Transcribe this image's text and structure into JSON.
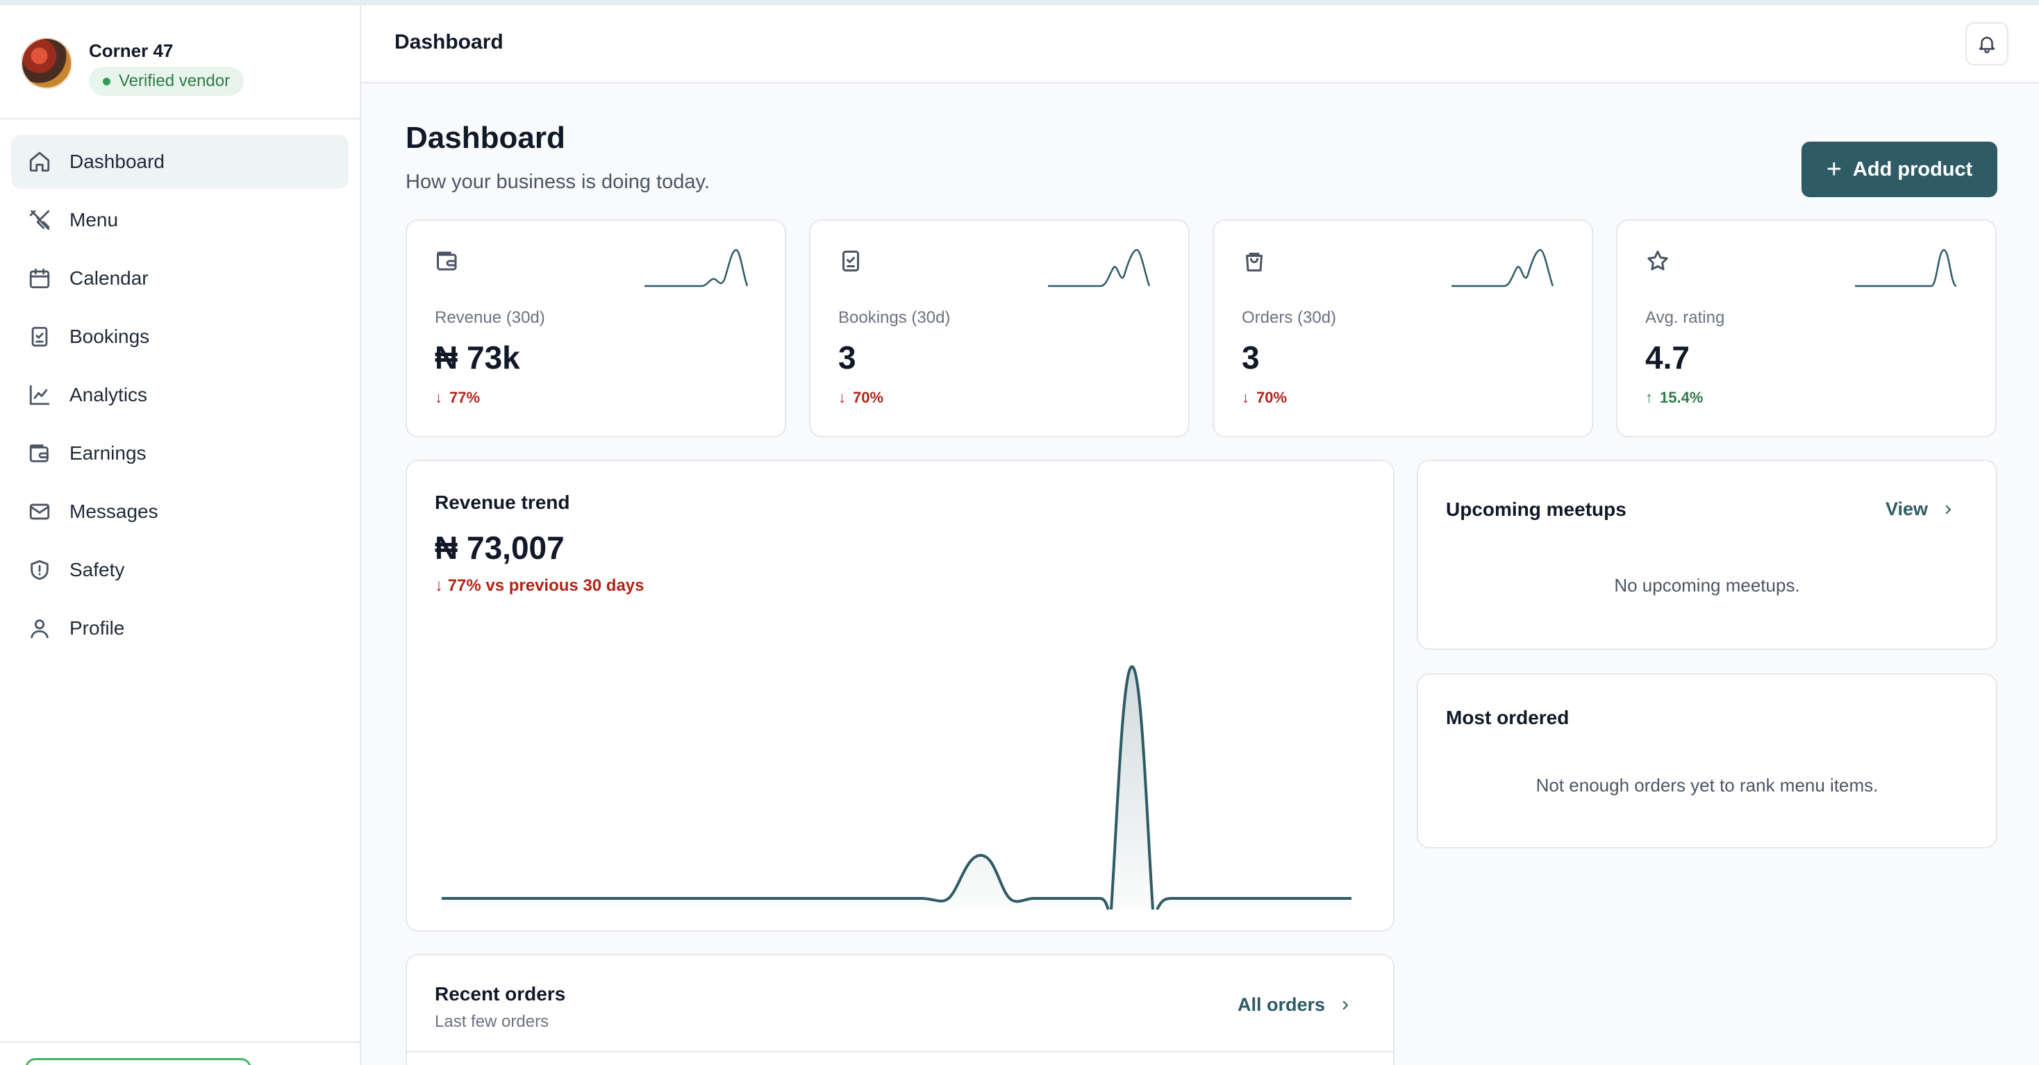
{
  "vendor": {
    "name": "Corner 47",
    "badge": "Verified vendor"
  },
  "nav": [
    {
      "label": "Dashboard",
      "icon": "home-icon",
      "active": true
    },
    {
      "label": "Menu",
      "icon": "utensils-icon"
    },
    {
      "label": "Calendar",
      "icon": "calendar-icon"
    },
    {
      "label": "Bookings",
      "icon": "clipboard-check-icon"
    },
    {
      "label": "Analytics",
      "icon": "line-chart-icon"
    },
    {
      "label": "Earnings",
      "icon": "wallet-icon"
    },
    {
      "label": "Messages",
      "icon": "mail-icon"
    },
    {
      "label": "Safety",
      "icon": "shield-alert-icon"
    },
    {
      "label": "Profile",
      "icon": "user-icon"
    }
  ],
  "topbar": {
    "title": "Dashboard",
    "bell_icon": "bell-icon"
  },
  "header": {
    "title": "Dashboard",
    "subtitle": "How your business is doing today.",
    "add_label": "Add product"
  },
  "stats": [
    {
      "label": "Revenue (30d)",
      "value": "₦ 73k",
      "delta": "77%",
      "direction": "down",
      "icon": "wallet-icon"
    },
    {
      "label": "Bookings (30d)",
      "value": "3",
      "delta": "70%",
      "direction": "down",
      "icon": "clipboard-check-icon"
    },
    {
      "label": "Orders (30d)",
      "value": "3",
      "delta": "70%",
      "direction": "down",
      "icon": "shopping-bag-icon"
    },
    {
      "label": "Avg. rating",
      "value": "4.7",
      "delta": "15.4%",
      "direction": "up",
      "icon": "star-icon"
    }
  ],
  "trend": {
    "title": "Revenue trend",
    "value": "₦ 73,007",
    "delta": "77% vs previous 30 days",
    "direction": "down"
  },
  "meetups": {
    "title": "Upcoming meetups",
    "link": "View",
    "empty": "No upcoming meetups."
  },
  "most_ordered": {
    "title": "Most ordered",
    "empty": "Not enough orders yet to rank menu items."
  },
  "recent": {
    "title": "Recent orders",
    "subtitle": "Last few orders",
    "link": "All orders"
  },
  "colors": {
    "accent": "#2e5b66",
    "down": "#b42318",
    "up": "#2f7a49",
    "verified": "#2f9e58"
  }
}
